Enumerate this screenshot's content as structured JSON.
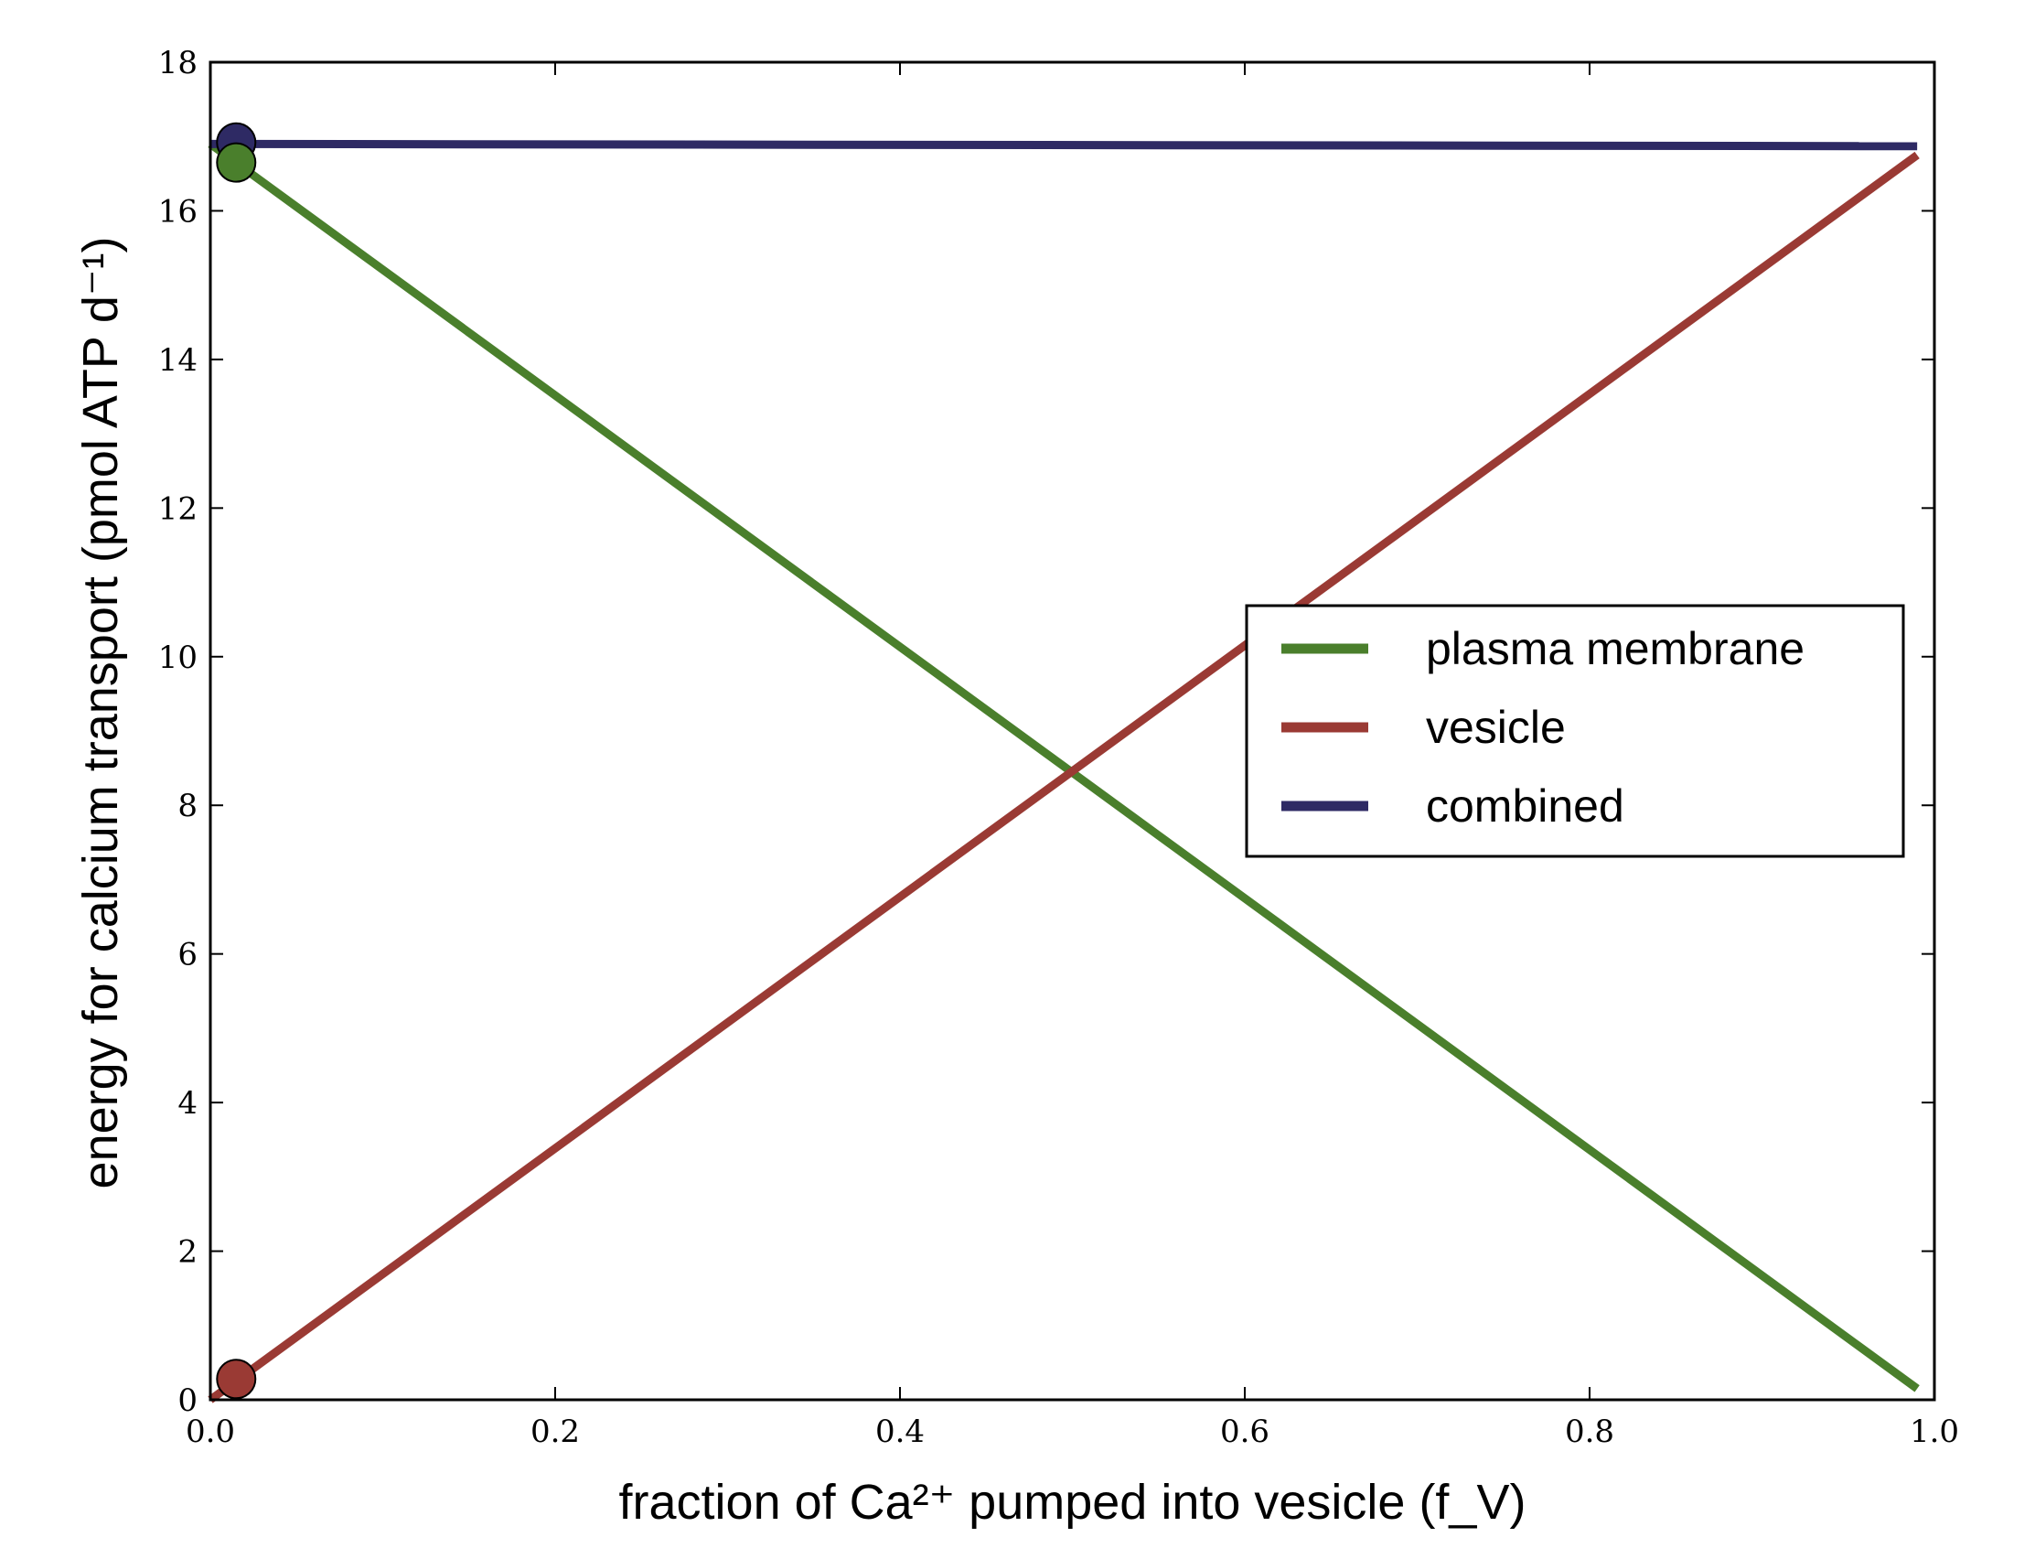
{
  "chart_data": {
    "type": "line",
    "xlabel": "fraction of Ca²⁺ pumped into vesicle (f_V)",
    "ylabel": "energy for calcium transport (pmol ATP d⁻¹)",
    "xlim": [
      0.0,
      1.0
    ],
    "ylim": [
      0,
      18
    ],
    "xticks": [
      "0.0",
      "0.2",
      "0.4",
      "0.6",
      "0.8",
      "1.0"
    ],
    "yticks": [
      "0",
      "2",
      "4",
      "6",
      "8",
      "10",
      "12",
      "14",
      "16",
      "18"
    ],
    "grid": false,
    "legend_position": "center-right",
    "series": [
      {
        "name": "plasma membrane",
        "color": "#4a7f2c",
        "x": [
          0.0,
          0.99
        ],
        "y": [
          16.9,
          0.15
        ],
        "marker": {
          "x": 0.015,
          "y": 16.65
        }
      },
      {
        "name": "vesicle",
        "color": "#9a3a34",
        "x": [
          0.0,
          0.99
        ],
        "y": [
          0.0,
          16.75
        ],
        "marker": {
          "x": 0.015,
          "y": 0.28
        }
      },
      {
        "name": "combined",
        "color": "#2e2a64",
        "x": [
          0.0,
          0.99
        ],
        "y": [
          16.9,
          16.87
        ],
        "marker": {
          "x": 0.015,
          "y": 16.92
        }
      }
    ]
  }
}
